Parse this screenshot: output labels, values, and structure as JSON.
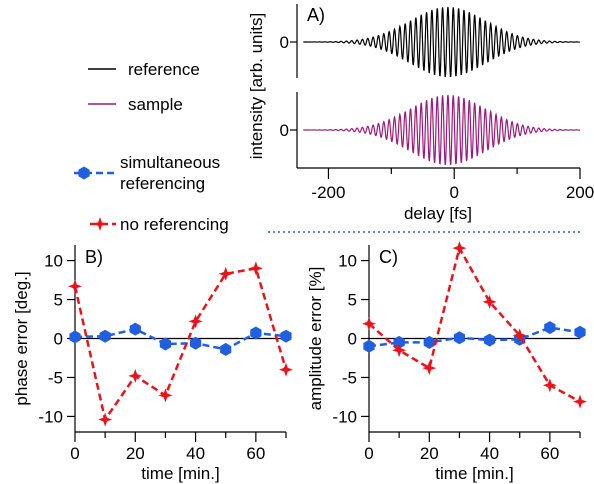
{
  "legend": {
    "items": [
      {
        "label": "reference",
        "color": "#000000",
        "style": "solid"
      },
      {
        "label": "sample",
        "color": "#9a1a7a",
        "style": "solid"
      },
      {
        "label_lines": [
          "simultaneous",
          "referencing"
        ],
        "color": "#1f5fe0",
        "style": "dashed",
        "marker": "hexagon"
      },
      {
        "label": "no referencing",
        "color": "#e8141b",
        "style": "dashed",
        "marker": "star"
      }
    ]
  },
  "chart_data": [
    {
      "panel": "A)",
      "type": "line",
      "xlabel": "delay [fs]",
      "ylabel": "intensity [arb. units]",
      "xlim": [
        -250,
        200
      ],
      "x_ticks": [
        -200,
        0,
        200
      ],
      "y_ticks": [
        0
      ],
      "series": [
        {
          "name": "reference",
          "color": "#000000",
          "waveform": {
            "center_fs": -10,
            "envelope_sigma_fs": 60,
            "period_fs": 8.5,
            "amplitude_rel": 1.0
          }
        },
        {
          "name": "sample",
          "color": "#9a1a7a",
          "waveform": {
            "center_fs": -10,
            "envelope_sigma_fs": 60,
            "period_fs": 8.5,
            "amplitude_rel": 1.0
          }
        }
      ]
    },
    {
      "panel": "B)",
      "type": "line",
      "xlabel": "time [min.]",
      "ylabel": "phase error [deg.]",
      "xlim": [
        0,
        70
      ],
      "ylim": [
        -12,
        12
      ],
      "x_ticks": [
        0,
        20,
        40,
        60
      ],
      "y_ticks": [
        10,
        5,
        0,
        -5,
        -10
      ],
      "x": [
        0,
        10,
        20,
        30,
        40,
        50,
        60,
        70
      ],
      "series": [
        {
          "name": "simultaneous referencing",
          "color": "#1f5fe0",
          "values": [
            0.2,
            0.3,
            1.2,
            -0.7,
            -0.6,
            -1.4,
            0.7,
            0.3
          ]
        },
        {
          "name": "no referencing",
          "color": "#e8141b",
          "values": [
            6.7,
            -10.4,
            -4.8,
            -7.3,
            2.2,
            8.3,
            9.0,
            -4.0
          ]
        }
      ]
    },
    {
      "panel": "C)",
      "type": "line",
      "xlabel": "time [min.]",
      "ylabel": "amplitude error [%]",
      "xlim": [
        0,
        70
      ],
      "ylim": [
        -12,
        12
      ],
      "x_ticks": [
        0,
        20,
        40,
        60
      ],
      "y_ticks": [
        10,
        5,
        0,
        -5,
        -10
      ],
      "x": [
        0,
        10,
        20,
        30,
        40,
        50,
        60,
        70
      ],
      "series": [
        {
          "name": "simultaneous referencing",
          "color": "#1f5fe0",
          "values": [
            -1.0,
            -0.5,
            -0.5,
            0.1,
            -0.2,
            -0.1,
            1.4,
            0.8
          ]
        },
        {
          "name": "no referencing",
          "color": "#e8141b",
          "values": [
            1.9,
            -1.5,
            -3.8,
            11.6,
            4.7,
            0.4,
            -6.0,
            -8.1
          ]
        }
      ]
    }
  ]
}
